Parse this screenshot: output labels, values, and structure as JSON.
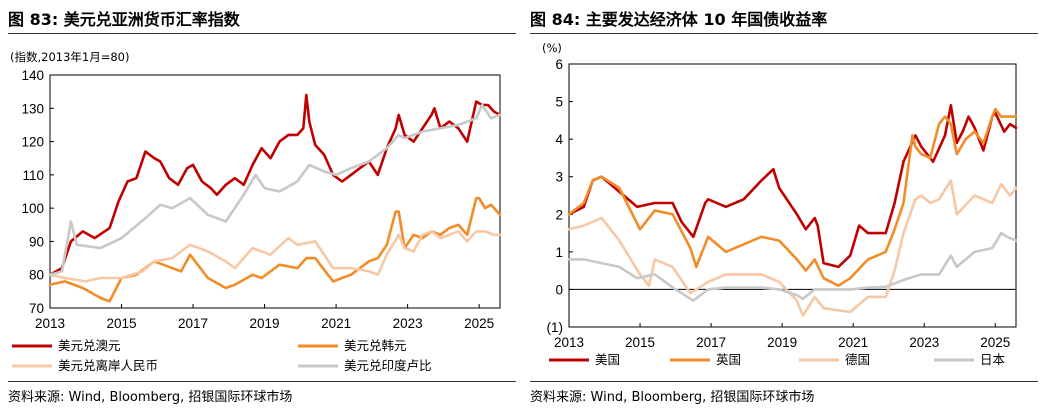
{
  "left": {
    "title": "图 83: 美元兑亚洲货币汇率指数",
    "source": "资料来源: Wind, Bloomberg, 招银国际环球市场"
  },
  "right": {
    "title": "图 84: 主要发达经济体 10 年国债收益率",
    "source": "资料来源: Wind, Bloomberg, 招银国际环球市场"
  },
  "chart_data": [
    {
      "type": "line",
      "title": "图 83: 美元兑亚洲货币汇率指数",
      "ylabel": "(指数,2013年1月=80)",
      "ylim": [
        70,
        140
      ],
      "y_ticks": [
        "70",
        "80",
        "90",
        "100",
        "110",
        "120",
        "130",
        "140"
      ],
      "x_ticks": [
        "2013",
        "2015",
        "2017",
        "2019",
        "2021",
        "2023",
        "2025"
      ],
      "xlim": [
        "2013-01",
        "2025-08"
      ],
      "grid": false,
      "legend_position": "bottom",
      "series": [
        {
          "name": "美元兑澳元",
          "color": "#C00000",
          "x": [
            "2013-01",
            "2013-05",
            "2013-08",
            "2013-12",
            "2014-04",
            "2014-09",
            "2014-12",
            "2015-03",
            "2015-06",
            "2015-09",
            "2015-12",
            "2016-02",
            "2016-05",
            "2016-08",
            "2016-11",
            "2017-01",
            "2017-04",
            "2017-07",
            "2017-09",
            "2017-12",
            "2018-03",
            "2018-06",
            "2018-09",
            "2018-12",
            "2019-03",
            "2019-06",
            "2019-09",
            "2019-12",
            "2020-02",
            "2020-03",
            "2020-04",
            "2020-06",
            "2020-09",
            "2020-12",
            "2021-03",
            "2021-06",
            "2021-09",
            "2021-12",
            "2022-03",
            "2022-06",
            "2022-09",
            "2022-10",
            "2022-12",
            "2023-03",
            "2023-06",
            "2023-09",
            "2023-10",
            "2023-12",
            "2024-03",
            "2024-06",
            "2024-09",
            "2024-12",
            "2025-02",
            "2025-04",
            "2025-06",
            "2025-08"
          ],
          "values": [
            80,
            82,
            90,
            93,
            91,
            94,
            102,
            108,
            109,
            117,
            115,
            114,
            109,
            107,
            112,
            113,
            108,
            106,
            104,
            107,
            109,
            107,
            113,
            118,
            115,
            120,
            122,
            122,
            124,
            134,
            126,
            119,
            116,
            110,
            108,
            110,
            112,
            114,
            110,
            118,
            124,
            128,
            122,
            120,
            124,
            128,
            130,
            124,
            126,
            124,
            120,
            132,
            131,
            131,
            129,
            128
          ]
        },
        {
          "name": "美元兑韩元",
          "color": "#F28C28",
          "x": [
            "2013-01",
            "2013-06",
            "2013-12",
            "2014-06",
            "2014-09",
            "2015-01",
            "2015-06",
            "2015-12",
            "2016-03",
            "2016-09",
            "2016-12",
            "2017-06",
            "2017-12",
            "2018-03",
            "2018-09",
            "2018-12",
            "2019-06",
            "2019-12",
            "2020-03",
            "2020-06",
            "2020-12",
            "2021-06",
            "2021-12",
            "2022-03",
            "2022-06",
            "2022-09",
            "2022-10",
            "2022-12",
            "2023-03",
            "2023-06",
            "2023-09",
            "2023-12",
            "2024-03",
            "2024-06",
            "2024-09",
            "2024-12",
            "2025-01",
            "2025-03",
            "2025-05",
            "2025-08"
          ],
          "values": [
            77,
            78,
            76,
            73,
            72,
            79,
            80,
            84,
            83,
            81,
            86,
            79,
            76,
            77,
            80,
            79,
            83,
            82,
            85,
            85,
            78,
            80,
            84,
            85,
            89,
            99,
            99,
            88,
            92,
            91,
            93,
            92,
            94,
            95,
            92,
            103,
            103,
            100,
            101,
            98
          ]
        },
        {
          "name": "美元兑离岸人民币",
          "color": "#F7C8A5",
          "x": [
            "2013-01",
            "2013-06",
            "2014-01",
            "2014-06",
            "2015-01",
            "2015-08",
            "2015-12",
            "2016-06",
            "2016-12",
            "2017-06",
            "2017-12",
            "2018-03",
            "2018-09",
            "2019-03",
            "2019-09",
            "2019-12",
            "2020-06",
            "2020-12",
            "2021-06",
            "2021-12",
            "2022-03",
            "2022-06",
            "2022-10",
            "2022-12",
            "2023-03",
            "2023-06",
            "2023-09",
            "2023-12",
            "2024-03",
            "2024-06",
            "2024-09",
            "2024-12",
            "2025-03",
            "2025-06",
            "2025-08"
          ],
          "values": [
            80,
            79,
            78,
            79,
            79,
            81,
            84,
            85,
            89,
            87,
            84,
            82,
            88,
            86,
            91,
            89,
            90,
            82,
            82,
            81,
            80,
            86,
            92,
            88,
            87,
            92,
            93,
            91,
            92,
            93,
            90,
            93,
            93,
            92,
            92
          ]
        },
        {
          "name": "美元兑印度卢比",
          "color": "#C8C8C8",
          "x": [
            "2013-01",
            "2013-05",
            "2013-08",
            "2013-10",
            "2014-06",
            "2015-01",
            "2015-09",
            "2016-02",
            "2016-06",
            "2016-12",
            "2017-06",
            "2017-12",
            "2018-06",
            "2018-10",
            "2019-01",
            "2019-06",
            "2019-12",
            "2020-04",
            "2020-09",
            "2021-01",
            "2021-06",
            "2021-12",
            "2022-03",
            "2022-06",
            "2022-10",
            "2022-12",
            "2023-06",
            "2023-12",
            "2024-06",
            "2024-12",
            "2025-02",
            "2025-05",
            "2025-08"
          ],
          "values": [
            80,
            81,
            96,
            89,
            88,
            91,
            97,
            101,
            100,
            103,
            98,
            96,
            104,
            110,
            106,
            105,
            108,
            113,
            111,
            110,
            112,
            114,
            116,
            118,
            122,
            121,
            123,
            124,
            125,
            127,
            131,
            127,
            128
          ]
        }
      ]
    },
    {
      "type": "line",
      "title": "图 84: 主要发达经济体 10 年国债收益率",
      "ylabel": "(%)",
      "ylim": [
        -1,
        6
      ],
      "y_ticks": [
        "(1)",
        "0",
        "1",
        "2",
        "3",
        "4",
        "5",
        "6"
      ],
      "x_ticks": [
        "2013",
        "2015",
        "2017",
        "2019",
        "2021",
        "2023",
        "2025"
      ],
      "xlim": [
        "2013-01",
        "2025-08"
      ],
      "grid": false,
      "legend_position": "bottom",
      "series": [
        {
          "name": "美国",
          "color": "#C00000",
          "x": [
            "2013-01",
            "2013-06",
            "2013-09",
            "2013-12",
            "2014-06",
            "2014-12",
            "2015-06",
            "2015-12",
            "2016-03",
            "2016-07",
            "2016-11",
            "2016-12",
            "2017-06",
            "2017-12",
            "2018-06",
            "2018-10",
            "2018-12",
            "2019-06",
            "2019-09",
            "2019-12",
            "2020-01",
            "2020-03",
            "2020-08",
            "2020-12",
            "2021-03",
            "2021-06",
            "2021-12",
            "2022-03",
            "2022-06",
            "2022-10",
            "2022-12",
            "2023-04",
            "2023-08",
            "2023-10",
            "2023-12",
            "2024-02",
            "2024-04",
            "2024-06",
            "2024-09",
            "2024-12",
            "2025-01",
            "2025-04",
            "2025-06",
            "2025-08"
          ],
          "values": [
            2.0,
            2.2,
            2.9,
            3.0,
            2.6,
            2.2,
            2.3,
            2.3,
            1.8,
            1.4,
            2.3,
            2.4,
            2.2,
            2.4,
            2.9,
            3.2,
            2.7,
            2.0,
            1.6,
            1.9,
            1.7,
            0.7,
            0.6,
            0.9,
            1.7,
            1.5,
            1.5,
            2.3,
            3.4,
            4.1,
            3.8,
            3.4,
            4.1,
            4.9,
            3.9,
            4.2,
            4.6,
            4.3,
            3.7,
            4.6,
            4.7,
            4.2,
            4.4,
            4.3
          ]
        },
        {
          "name": "英国",
          "color": "#F28C28",
          "x": [
            "2013-01",
            "2013-06",
            "2013-09",
            "2013-12",
            "2014-06",
            "2015-01",
            "2015-06",
            "2015-12",
            "2016-06",
            "2016-08",
            "2016-12",
            "2017-06",
            "2017-12",
            "2018-06",
            "2018-12",
            "2019-06",
            "2019-09",
            "2019-12",
            "2020-03",
            "2020-08",
            "2020-12",
            "2021-06",
            "2021-12",
            "2022-03",
            "2022-06",
            "2022-09",
            "2022-10",
            "2022-12",
            "2023-03",
            "2023-06",
            "2023-08",
            "2023-10",
            "2023-12",
            "2024-03",
            "2024-06",
            "2024-09",
            "2024-12",
            "2025-01",
            "2025-03",
            "2025-06",
            "2025-08"
          ],
          "values": [
            2.0,
            2.3,
            2.9,
            3.0,
            2.7,
            1.6,
            2.1,
            2.0,
            1.1,
            0.6,
            1.4,
            1.0,
            1.2,
            1.4,
            1.3,
            0.8,
            0.5,
            0.8,
            0.3,
            0.1,
            0.3,
            0.8,
            1.0,
            1.6,
            2.3,
            4.1,
            3.8,
            3.6,
            3.5,
            4.4,
            4.6,
            4.4,
            3.6,
            4.0,
            4.2,
            3.9,
            4.6,
            4.8,
            4.6,
            4.6,
            4.6
          ]
        },
        {
          "name": "德国",
          "color": "#F7C8A5",
          "x": [
            "2013-01",
            "2013-06",
            "2013-12",
            "2014-06",
            "2015-01",
            "2015-04",
            "2015-06",
            "2015-12",
            "2016-06",
            "2016-12",
            "2017-06",
            "2017-12",
            "2018-06",
            "2018-12",
            "2019-06",
            "2019-08",
            "2019-12",
            "2020-03",
            "2020-12",
            "2021-06",
            "2021-12",
            "2022-03",
            "2022-06",
            "2022-10",
            "2022-12",
            "2023-03",
            "2023-06",
            "2023-10",
            "2023-12",
            "2024-06",
            "2024-12",
            "2025-03",
            "2025-06",
            "2025-08"
          ],
          "values": [
            1.6,
            1.7,
            1.9,
            1.3,
            0.4,
            0.1,
            0.8,
            0.6,
            -0.1,
            0.2,
            0.4,
            0.4,
            0.4,
            0.2,
            -0.3,
            -0.7,
            -0.2,
            -0.5,
            -0.6,
            -0.2,
            -0.2,
            0.5,
            1.5,
            2.4,
            2.5,
            2.3,
            2.4,
            2.9,
            2.0,
            2.5,
            2.3,
            2.8,
            2.5,
            2.7
          ]
        },
        {
          "name": "日本",
          "color": "#C8C8C8",
          "x": [
            "2013-01",
            "2013-06",
            "2013-12",
            "2014-06",
            "2014-12",
            "2015-06",
            "2016-01",
            "2016-07",
            "2016-12",
            "2017-06",
            "2017-12",
            "2018-06",
            "2018-12",
            "2019-06",
            "2019-08",
            "2019-12",
            "2020-06",
            "2020-12",
            "2021-06",
            "2021-12",
            "2022-06",
            "2022-12",
            "2023-06",
            "2023-10",
            "2023-12",
            "2024-06",
            "2024-12",
            "2025-03",
            "2025-05",
            "2025-08"
          ],
          "values": [
            0.8,
            0.8,
            0.7,
            0.6,
            0.3,
            0.4,
            0.0,
            -0.3,
            0.0,
            0.05,
            0.05,
            0.05,
            0.0,
            -0.15,
            -0.25,
            0.0,
            0.0,
            0.0,
            0.05,
            0.07,
            0.25,
            0.4,
            0.4,
            0.9,
            0.6,
            1.0,
            1.1,
            1.5,
            1.4,
            1.3
          ]
        }
      ]
    }
  ]
}
